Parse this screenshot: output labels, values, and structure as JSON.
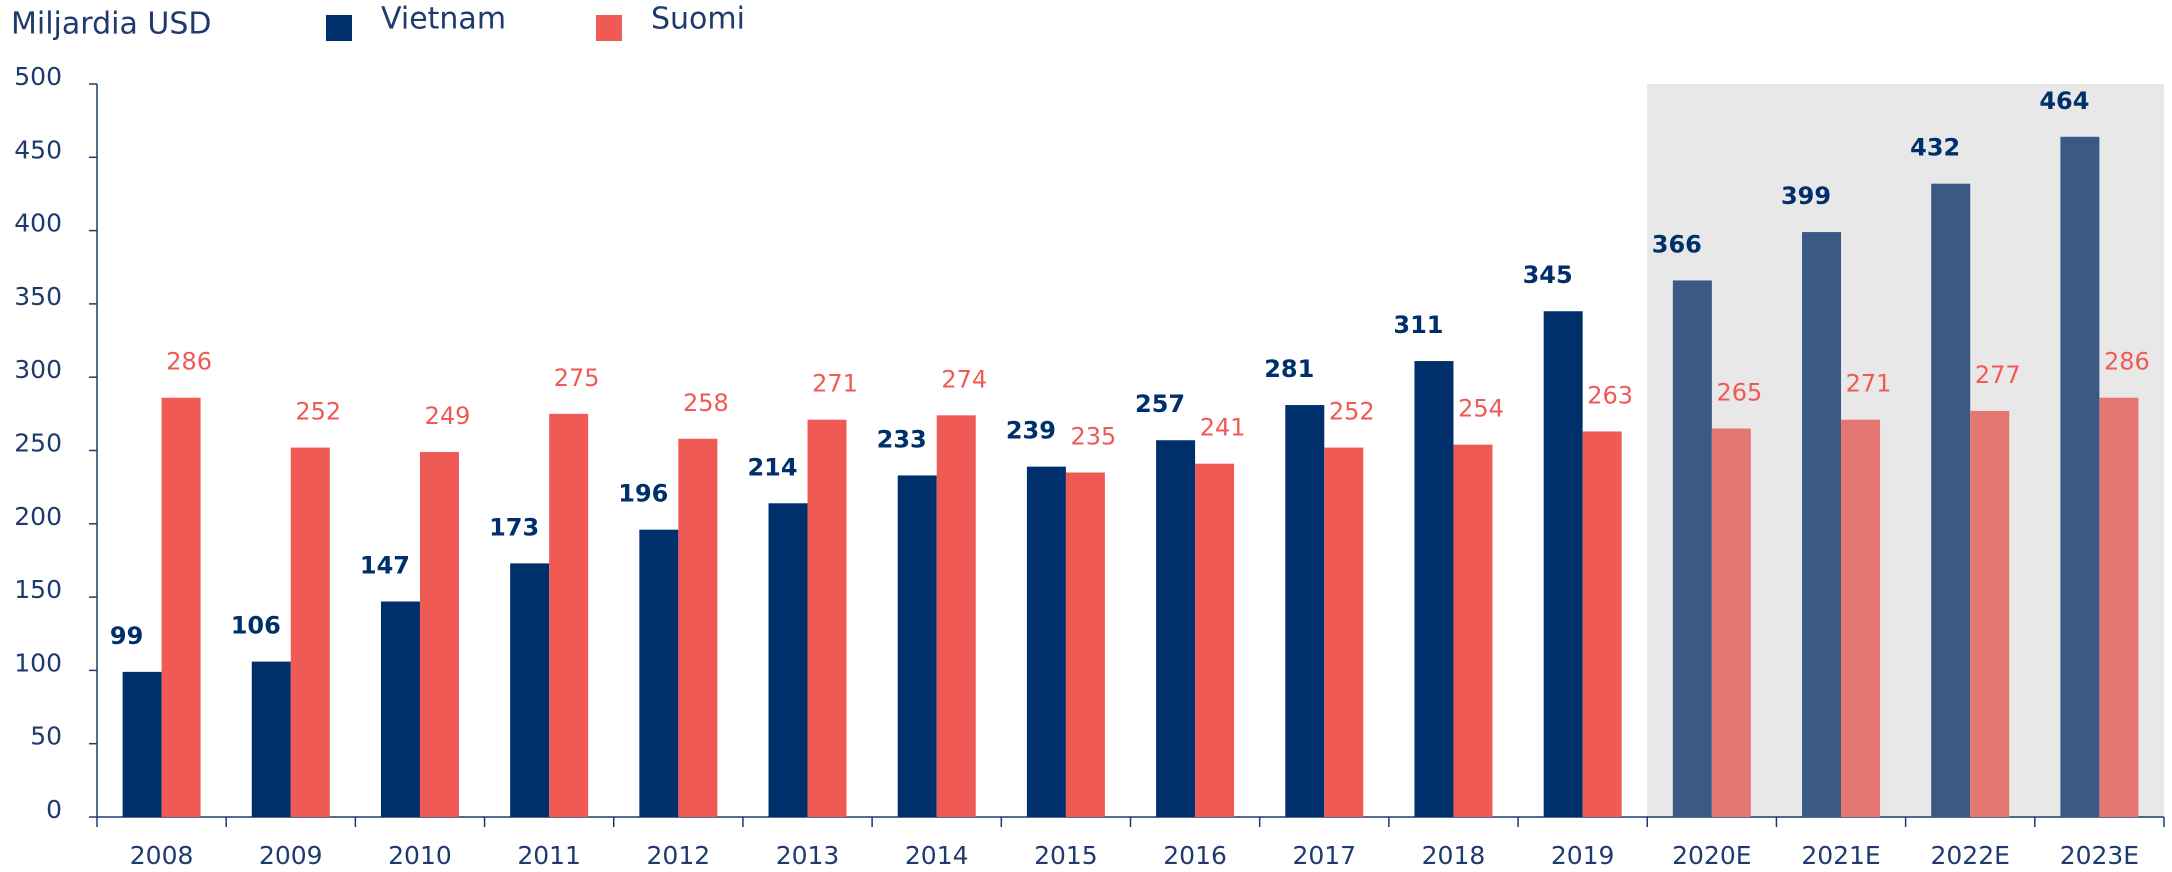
{
  "chart_data": {
    "type": "bar",
    "title": "Miljardia USD",
    "categories": [
      "2008",
      "2009",
      "2010",
      "2011",
      "2012",
      "2013",
      "2014",
      "2015",
      "2016",
      "2017",
      "2018",
      "2019",
      "2020E",
      "2021E",
      "2022E",
      "2023E"
    ],
    "series": [
      {
        "name": "Vietnam",
        "color": "#00306b",
        "forecast_color": "#3a5a85",
        "values": [
          99,
          106,
          147,
          173,
          196,
          214,
          233,
          239,
          257,
          281,
          311,
          345,
          366,
          399,
          432,
          464
        ]
      },
      {
        "name": "Suomi",
        "color": "#f05a55",
        "forecast_color": "#e57773",
        "values": [
          286,
          252,
          249,
          275,
          258,
          271,
          274,
          235,
          241,
          252,
          254,
          263,
          265,
          271,
          277,
          286
        ]
      }
    ],
    "shade_start_index": 12,
    "shade_color": "#e8e8e8",
    "ylim": [
      0,
      500
    ],
    "yticks": [
      0,
      50,
      100,
      150,
      200,
      250,
      300,
      350,
      400,
      450,
      500
    ],
    "grid": false
  }
}
